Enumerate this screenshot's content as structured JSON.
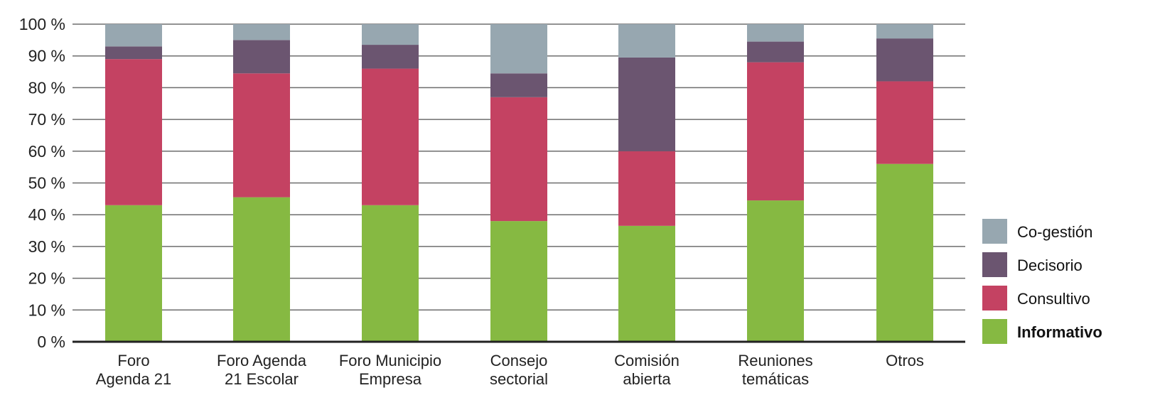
{
  "chart_data": {
    "type": "bar",
    "stacked": true,
    "categories": [
      [
        "Foro",
        "Agenda 21"
      ],
      [
        "Foro Agenda",
        "21 Escolar"
      ],
      [
        "Foro Municipio",
        "Empresa"
      ],
      [
        "Consejo",
        "sectorial"
      ],
      [
        "Comisión",
        "abierta"
      ],
      [
        "Reuniones",
        "temáticas"
      ],
      [
        "Otros"
      ]
    ],
    "series": [
      {
        "name": "Informativo",
        "color": "#86b942",
        "values": [
          43,
          45.5,
          43,
          38,
          36.5,
          44.5,
          56
        ]
      },
      {
        "name": "Consultivo",
        "color": "#c44262",
        "values": [
          46,
          39,
          43,
          39,
          23.5,
          43.5,
          26
        ]
      },
      {
        "name": "Decisorio",
        "color": "#6b5570",
        "values": [
          4,
          10.5,
          7.5,
          7.5,
          29.5,
          6.5,
          13.5
        ]
      },
      {
        "name": "Co-gestión",
        "color": "#97a7b0",
        "values": [
          7,
          5,
          6.5,
          15.5,
          10.5,
          5.5,
          4.5
        ]
      }
    ],
    "yticks": [
      "0 %",
      "10 %",
      "20 %",
      "30 %",
      "40 %",
      "50 %",
      "60 %",
      "70 %",
      "80 %",
      "90 %",
      "100 %"
    ],
    "ylim": [
      0,
      100
    ],
    "grid": true,
    "legend_position": "right",
    "legend_order": [
      "Co-gestión",
      "Decisorio",
      "Consultivo",
      "Informativo"
    ],
    "legend_bold": [
      "Informativo"
    ],
    "xlabel": "",
    "ylabel": "",
    "title": ""
  }
}
